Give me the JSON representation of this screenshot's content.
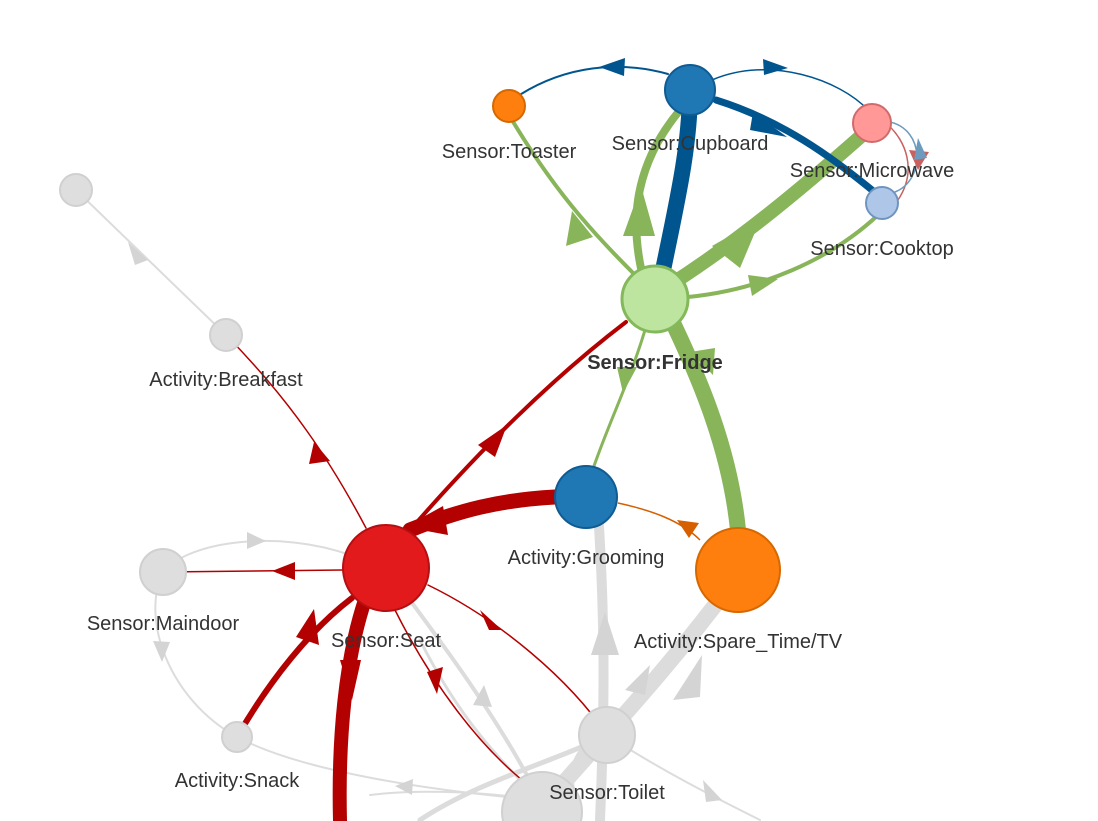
{
  "colors": {
    "fridge_edge": "#88b55a",
    "seat_edge": "#b30000",
    "cupboard_edge": "#01558f",
    "grooming_edge": "#d65f00",
    "microwave_edge": "#c9605f",
    "cooktop_edge": "#6c9bbd",
    "dim_edge": "#dadada",
    "dim_node": "#dedede"
  },
  "nodes": [
    {
      "id": "toaster",
      "label": "Sensor:Toaster",
      "fill": "#ff7f0e",
      "stroke": "#d66800",
      "state": "normal"
    },
    {
      "id": "cupboard",
      "label": "Sensor:Cupboard",
      "fill": "#1f77b4",
      "stroke": "#105b92",
      "state": "normal"
    },
    {
      "id": "microwave",
      "label": "Sensor:Microwave",
      "fill": "#ff9896",
      "stroke": "#d06b6a",
      "state": "normal"
    },
    {
      "id": "cooktop",
      "label": "Sensor:Cooktop",
      "fill": "#aec7e8",
      "stroke": "#6f95bf",
      "state": "normal"
    },
    {
      "id": "fridge",
      "label": "Sensor:Fridge",
      "fill": "#bde5a0",
      "stroke": "#84b95b",
      "state": "selected"
    },
    {
      "id": "grooming",
      "label": "Activity:Grooming",
      "fill": "#1f77b4",
      "stroke": "#105b92",
      "state": "normal"
    },
    {
      "id": "sparetv",
      "label": "Activity:Spare_Time/TV",
      "fill": "#ff7f0e",
      "stroke": "#d66800",
      "state": "normal"
    },
    {
      "id": "seat",
      "label": "Sensor:Seat",
      "fill": "#e31a1c",
      "stroke": "#b40f12",
      "state": "normal"
    },
    {
      "id": "breakfast",
      "label": "Activity:Breakfast",
      "fill": "#dedede",
      "stroke": "#cccccc",
      "state": "dim"
    },
    {
      "id": "maindoor",
      "label": "Sensor:Maindoor",
      "fill": "#dedede",
      "stroke": "#cccccc",
      "state": "dim"
    },
    {
      "id": "snack",
      "label": "Activity:Snack",
      "fill": "#dedede",
      "stroke": "#cccccc",
      "state": "dim"
    },
    {
      "id": "toilet",
      "label": "Sensor:Toilet",
      "fill": "#dedede",
      "stroke": "#cccccc",
      "state": "dim"
    },
    {
      "id": "unnamed_top",
      "label": "",
      "fill": "#dedede",
      "stroke": "#cccccc",
      "state": "dim"
    },
    {
      "id": "unnamed_hub",
      "label": "",
      "fill": "#dedede",
      "stroke": "#cccccc",
      "state": "dim"
    }
  ],
  "edges": [
    {
      "source": "fridge",
      "target": "toaster",
      "color": "fridge_edge"
    },
    {
      "source": "fridge",
      "target": "cupboard",
      "color": "fridge_edge"
    },
    {
      "source": "fridge",
      "target": "microwave",
      "color": "fridge_edge"
    },
    {
      "source": "fridge",
      "target": "cooktop",
      "color": "fridge_edge"
    },
    {
      "source": "fridge",
      "target": "sparetv",
      "color": "fridge_edge"
    },
    {
      "source": "fridge",
      "target": "grooming",
      "color": "fridge_edge"
    },
    {
      "source": "cupboard",
      "target": "fridge",
      "color": "cupboard_edge"
    },
    {
      "source": "cupboard",
      "target": "toaster",
      "color": "cupboard_edge"
    },
    {
      "source": "cupboard",
      "target": "microwave",
      "color": "cupboard_edge"
    },
    {
      "source": "cupboard",
      "target": "cooktop",
      "color": "cupboard_edge"
    },
    {
      "source": "microwave",
      "target": "cooktop",
      "color": "microwave_edge"
    },
    {
      "source": "cooktop",
      "target": "microwave",
      "color": "cooktop_edge"
    },
    {
      "source": "seat",
      "target": "fridge",
      "color": "seat_edge"
    },
    {
      "source": "grooming",
      "target": "seat",
      "color": "seat_edge"
    },
    {
      "source": "grooming",
      "target": "sparetv",
      "color": "grooming_edge"
    },
    {
      "source": "seat",
      "target": "breakfast",
      "color": "seat_edge"
    },
    {
      "source": "seat",
      "target": "maindoor",
      "color": "seat_edge"
    },
    {
      "source": "snack",
      "target": "seat",
      "color": "seat_edge"
    },
    {
      "source": "seat",
      "target": "toilet",
      "color": "seat_edge"
    },
    {
      "source": "seat",
      "target": "unnamed_hub",
      "color": "seat_edge"
    },
    {
      "source": "seat",
      "target": "offscreen_bottom",
      "color": "seat_edge"
    },
    {
      "source": "unnamed_top",
      "target": "breakfast",
      "color": "dim_edge"
    },
    {
      "source": "maindoor",
      "target": "seat",
      "color": "dim_edge"
    },
    {
      "source": "maindoor",
      "target": "snack",
      "color": "dim_edge"
    },
    {
      "source": "snack",
      "target": "toilet",
      "color": "dim_edge"
    },
    {
      "source": "toilet",
      "target": "grooming",
      "color": "dim_edge"
    },
    {
      "source": "toilet",
      "target": "sparetv",
      "color": "dim_edge"
    },
    {
      "source": "unnamed_hub",
      "target": "sparetv",
      "color": "dim_edge"
    },
    {
      "source": "toilet",
      "target": "seat",
      "color": "dim_edge"
    }
  ]
}
